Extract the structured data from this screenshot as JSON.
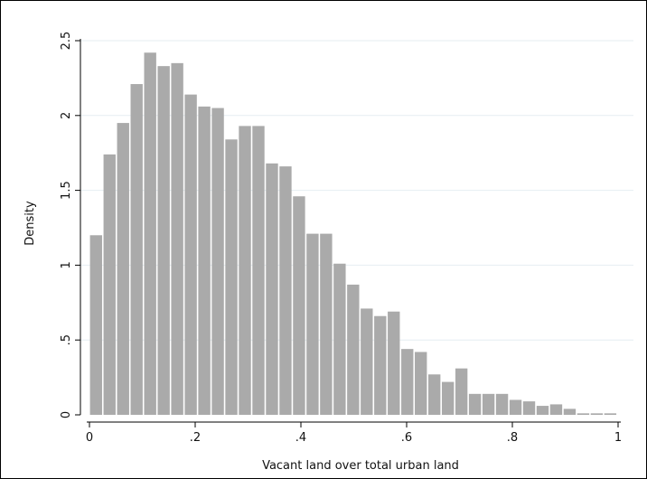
{
  "chart_data": {
    "type": "bar",
    "xlabel": "Vacant land over total  urban land",
    "ylabel": "Density",
    "xlim": [
      0,
      1
    ],
    "ylim": [
      0,
      2.5
    ],
    "xticks": [
      {
        "value": 0,
        "label": "0"
      },
      {
        "value": 0.2,
        "label": ".2"
      },
      {
        "value": 0.4,
        "label": ".4"
      },
      {
        "value": 0.6,
        "label": ".6"
      },
      {
        "value": 0.8,
        "label": ".8"
      },
      {
        "value": 1,
        "label": "1"
      }
    ],
    "yticks": [
      {
        "value": 0,
        "label": "0"
      },
      {
        "value": 0.5,
        "label": ".5"
      },
      {
        "value": 1,
        "label": "1"
      },
      {
        "value": 1.5,
        "label": "1.5"
      },
      {
        "value": 2,
        "label": "2"
      },
      {
        "value": 2.5,
        "label": "2.5"
      }
    ],
    "grid": true,
    "bar_color": "#aaaaaa",
    "bin_width": 0.0256,
    "bin_starts": [
      0.0,
      0.0256,
      0.0512,
      0.0768,
      0.1024,
      0.128,
      0.1536,
      0.1792,
      0.2048,
      0.2304,
      0.256,
      0.2816,
      0.3072,
      0.3328,
      0.3584,
      0.384,
      0.4096,
      0.4352,
      0.4608,
      0.4864,
      0.512,
      0.5376,
      0.5632,
      0.5888,
      0.6144,
      0.64,
      0.6656,
      0.6912,
      0.7168,
      0.7424,
      0.768,
      0.7936,
      0.8192,
      0.8448,
      0.8704,
      0.896,
      0.9216,
      0.9472,
      0.9728
    ],
    "values": [
      1.2,
      1.74,
      1.95,
      2.21,
      2.42,
      2.33,
      2.35,
      2.14,
      2.06,
      2.05,
      1.84,
      1.93,
      1.93,
      1.68,
      1.66,
      1.46,
      1.21,
      1.21,
      1.01,
      0.87,
      0.71,
      0.66,
      0.69,
      0.44,
      0.42,
      0.27,
      0.22,
      0.31,
      0.14,
      0.14,
      0.14,
      0.1,
      0.09,
      0.06,
      0.07,
      0.04,
      0.01,
      0.01,
      0.01
    ]
  }
}
